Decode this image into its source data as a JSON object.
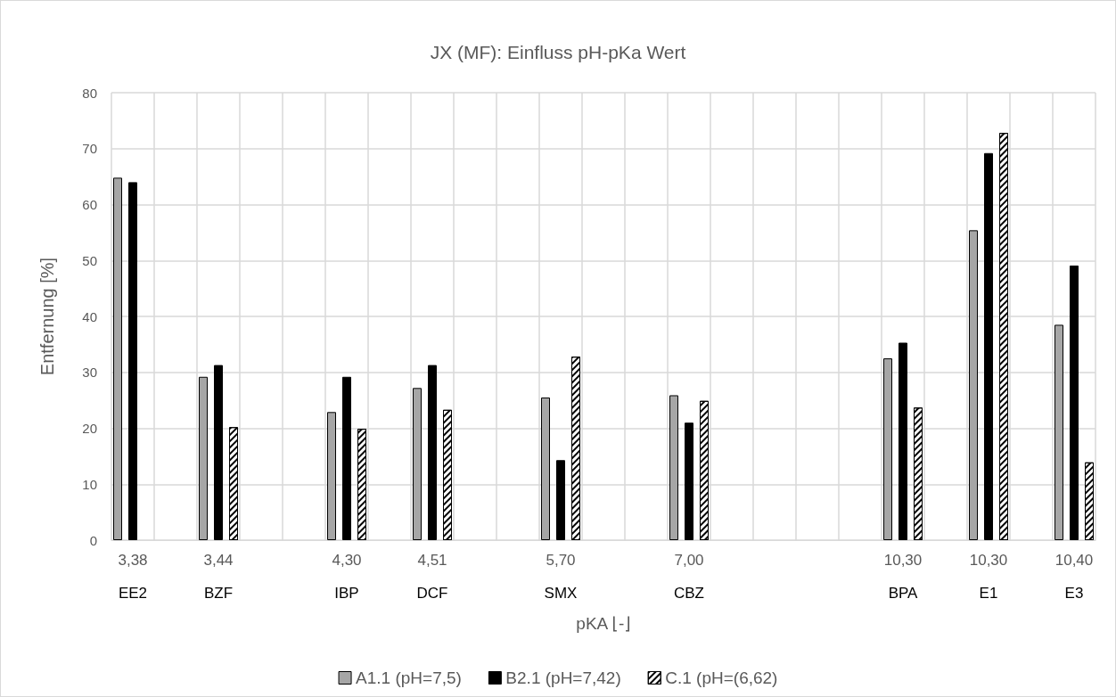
{
  "chart_data": {
    "type": "bar",
    "title": "JX (MF): Einfluss pH-pKa Wert",
    "xlabel": "pKA ⌊-⌋",
    "ylabel": "Entfernung [%]",
    "categories": [
      "3,38\nEE2",
      null,
      "3,44\nBZF",
      null,
      null,
      "4,30\nIBP",
      null,
      "4,51\nDCF",
      null,
      null,
      "5,70\nSMX",
      null,
      null,
      "7,00\nCBZ",
      null,
      null,
      null,
      null,
      "10,30\nBPA",
      null,
      "10,30\nE1",
      null,
      "10,40\nE3"
    ],
    "series": [
      {
        "name": "A1.1 (pH=7,5)",
        "color": "#a6a6a6",
        "values": [
          64.8,
          null,
          29.2,
          null,
          null,
          22.9,
          null,
          27.2,
          null,
          null,
          25.5,
          null,
          null,
          25.9,
          null,
          null,
          null,
          null,
          32.5,
          null,
          55.4,
          null,
          38.5
        ]
      },
      {
        "name": "B2.1 (pH=7,42)",
        "color": "#000000",
        "values": [
          64.0,
          null,
          31.3,
          null,
          null,
          29.2,
          null,
          31.3,
          null,
          null,
          14.3,
          null,
          null,
          21.0,
          null,
          null,
          null,
          null,
          35.3,
          null,
          69.2,
          null,
          49.1
        ]
      },
      {
        "name": "C.1 (pH=(6,62)",
        "color": "#ffffff",
        "values": [
          null,
          null,
          20.2,
          null,
          null,
          19.9,
          null,
          23.3,
          null,
          null,
          32.8,
          null,
          null,
          24.9,
          null,
          null,
          null,
          null,
          23.7,
          null,
          72.8,
          null,
          13.9
        ]
      }
    ],
    "ylim": [
      0,
      80
    ],
    "yticks": [
      0,
      10,
      20,
      30,
      40,
      50,
      60,
      70,
      80
    ],
    "grid": true,
    "legend": "bottom"
  }
}
